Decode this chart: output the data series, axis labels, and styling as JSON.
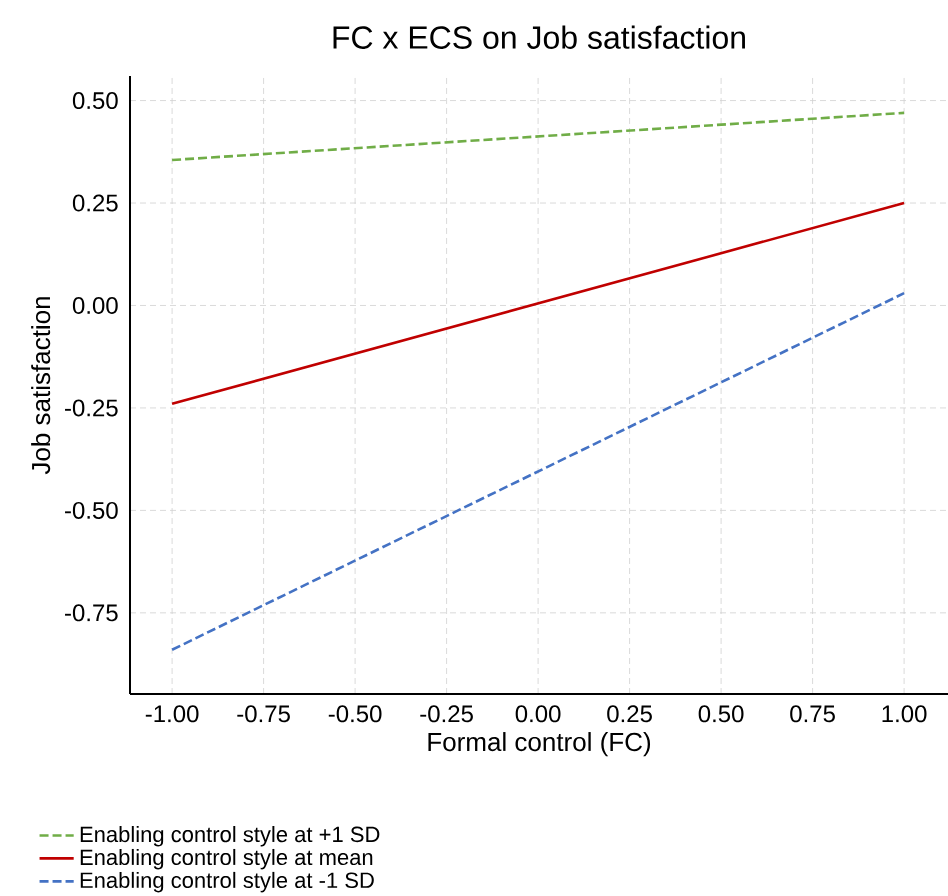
{
  "chart_data": {
    "type": "line",
    "title": "FC x ECS on Job satisfaction",
    "xlabel": "Formal control (FC)",
    "ylabel": "Job satisfaction",
    "x": [
      -1.0,
      1.0
    ],
    "series": [
      {
        "name": "Enabling control style at +1 SD",
        "color": "#70ad47",
        "line_style": "dashed",
        "values": [
          0.355,
          0.47
        ]
      },
      {
        "name": "Enabling control style at mean",
        "color": "#c00000",
        "line_style": "solid",
        "values": [
          -0.24,
          0.25
        ]
      },
      {
        "name": "Enabling control style at -1 SD",
        "color": "#4472c4",
        "line_style": "dashed",
        "values": [
          -0.84,
          0.03
        ]
      }
    ],
    "xlim": [
      -1.115,
      1.12
    ],
    "ylim": [
      -0.948,
      0.56
    ],
    "xticks": [
      {
        "value": -1,
        "label": "-1.00"
      },
      {
        "value": -0.75,
        "label": "-0.75"
      },
      {
        "value": -0.5,
        "label": "-0.50"
      },
      {
        "value": -0.25,
        "label": "-0.25"
      },
      {
        "value": 0,
        "label": "0.00"
      },
      {
        "value": 0.25,
        "label": "0.25"
      },
      {
        "value": 0.5,
        "label": "0.50"
      },
      {
        "value": 0.75,
        "label": "0.75"
      },
      {
        "value": 1,
        "label": "1.00"
      }
    ],
    "yticks": [
      {
        "value": -0.75,
        "label": "-0.75"
      },
      {
        "value": -0.5,
        "label": "-0.50"
      },
      {
        "value": -0.25,
        "label": "-0.25"
      },
      {
        "value": 0,
        "label": "0.00"
      },
      {
        "value": 0.25,
        "label": "0.25"
      },
      {
        "value": 0.5,
        "label": "0.50"
      }
    ],
    "grid": true,
    "legend": "bottom",
    "marker": "none"
  }
}
